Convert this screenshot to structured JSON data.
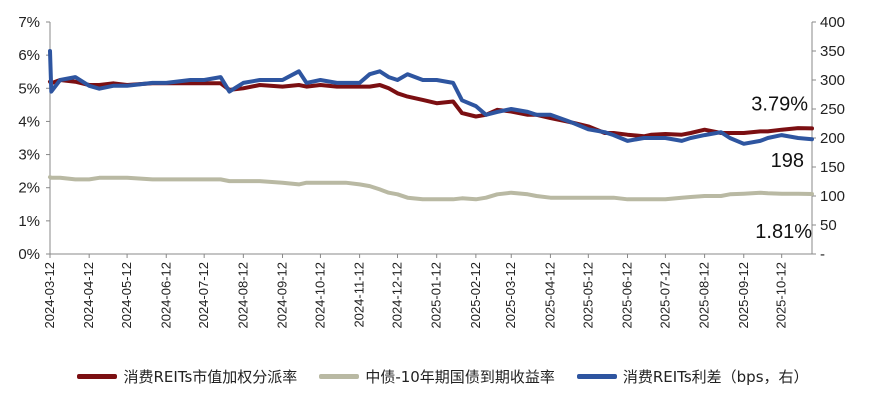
{
  "chart_data": {
    "type": "line",
    "title": "",
    "xlabel": "",
    "ylabel": "",
    "y2label": "",
    "ylim": [
      0,
      7
    ],
    "y2lim": [
      0,
      400
    ],
    "y_ticks": [
      "0%",
      "1%",
      "2%",
      "3%",
      "4%",
      "5%",
      "6%",
      "7%"
    ],
    "y2_ticks": [
      "-",
      "50",
      "100",
      "150",
      "200",
      "250",
      "300",
      "350",
      "400"
    ],
    "x_ticks": [
      "2024-03-12",
      "2024-04-12",
      "2024-05-12",
      "2024-06-12",
      "2024-07-12",
      "2024-08-12",
      "2024-09-12",
      "2024-10-12",
      "2024-11-12",
      "2024-12-12",
      "2025-01-12",
      "2025-02-12",
      "2025-03-12",
      "2025-04-12",
      "2025-05-12",
      "2025-06-12",
      "2025-07-12",
      "2025-08-12",
      "2025-09-12",
      "2025-10-12"
    ],
    "x": [
      "2024-03-12",
      "2024-03-13",
      "2024-03-20",
      "2024-04-01",
      "2024-04-12",
      "2024-04-20",
      "2024-05-01",
      "2024-05-12",
      "2024-06-01",
      "2024-06-12",
      "2024-07-01",
      "2024-07-12",
      "2024-07-25",
      "2024-08-01",
      "2024-08-12",
      "2024-08-25",
      "2024-09-12",
      "2024-09-25",
      "2024-10-01",
      "2024-10-12",
      "2024-10-25",
      "2024-11-01",
      "2024-11-12",
      "2024-11-20",
      "2024-11-28",
      "2024-12-05",
      "2024-12-12",
      "2024-12-20",
      "2025-01-01",
      "2025-01-12",
      "2025-01-25",
      "2025-02-01",
      "2025-02-12",
      "2025-02-20",
      "2025-03-01",
      "2025-03-12",
      "2025-03-25",
      "2025-04-01",
      "2025-04-12",
      "2025-04-25",
      "2025-05-01",
      "2025-05-12",
      "2025-05-25",
      "2025-06-01",
      "2025-06-12",
      "2025-06-25",
      "2025-07-01",
      "2025-07-12",
      "2025-07-25",
      "2025-08-01",
      "2025-08-12",
      "2025-08-25",
      "2025-09-01",
      "2025-09-12",
      "2025-09-25",
      "2025-10-01",
      "2025-10-12",
      "2025-10-25",
      "2025-11-05"
    ],
    "series": [
      {
        "name": "消费REITs市值加权分派率",
        "axis": "left",
        "color": "#7b0f12",
        "values": [
          5.2,
          5.15,
          5.25,
          5.2,
          5.1,
          5.1,
          5.15,
          5.1,
          5.15,
          5.15,
          5.15,
          5.15,
          5.15,
          4.95,
          5.0,
          5.1,
          5.05,
          5.1,
          5.05,
          5.1,
          5.05,
          5.05,
          5.05,
          5.05,
          5.1,
          5.0,
          4.85,
          4.75,
          4.65,
          4.55,
          4.6,
          4.25,
          4.15,
          4.2,
          4.35,
          4.3,
          4.2,
          4.2,
          4.1,
          4.0,
          3.95,
          3.85,
          3.65,
          3.65,
          3.6,
          3.55,
          3.6,
          3.62,
          3.6,
          3.65,
          3.75,
          3.65,
          3.65,
          3.65,
          3.7,
          3.7,
          3.75,
          3.8,
          3.79
        ]
      },
      {
        "name": "中债-10年期国债到期收益率",
        "axis": "left",
        "color": "#b9b9a3",
        "values": [
          2.32,
          2.3,
          2.3,
          2.25,
          2.25,
          2.3,
          2.3,
          2.3,
          2.25,
          2.25,
          2.25,
          2.25,
          2.25,
          2.2,
          2.2,
          2.2,
          2.15,
          2.1,
          2.15,
          2.15,
          2.15,
          2.15,
          2.1,
          2.05,
          1.95,
          1.85,
          1.8,
          1.7,
          1.65,
          1.65,
          1.65,
          1.68,
          1.65,
          1.7,
          1.8,
          1.85,
          1.8,
          1.75,
          1.7,
          1.7,
          1.7,
          1.7,
          1.7,
          1.7,
          1.65,
          1.65,
          1.65,
          1.65,
          1.7,
          1.72,
          1.75,
          1.75,
          1.8,
          1.82,
          1.85,
          1.83,
          1.82,
          1.82,
          1.81
        ]
      },
      {
        "name": "消费REITs利差（bps，右）",
        "axis": "right",
        "color": "#2e55a0",
        "values": [
          350,
          280,
          300,
          305,
          290,
          285,
          290,
          290,
          295,
          295,
          300,
          300,
          305,
          280,
          295,
          300,
          300,
          315,
          295,
          300,
          295,
          295,
          295,
          310,
          315,
          305,
          300,
          310,
          300,
          300,
          295,
          265,
          255,
          240,
          245,
          250,
          245,
          240,
          240,
          230,
          225,
          215,
          210,
          205,
          195,
          200,
          200,
          200,
          195,
          200,
          205,
          210,
          200,
          190,
          195,
          200,
          205,
          200,
          198
        ]
      }
    ],
    "annotations": [
      {
        "text": "3.79%",
        "series": 0
      },
      {
        "text": "198",
        "series": 2
      },
      {
        "text": "1.81%",
        "series": 1
      }
    ],
    "legend_position": "bottom",
    "grid": false
  }
}
